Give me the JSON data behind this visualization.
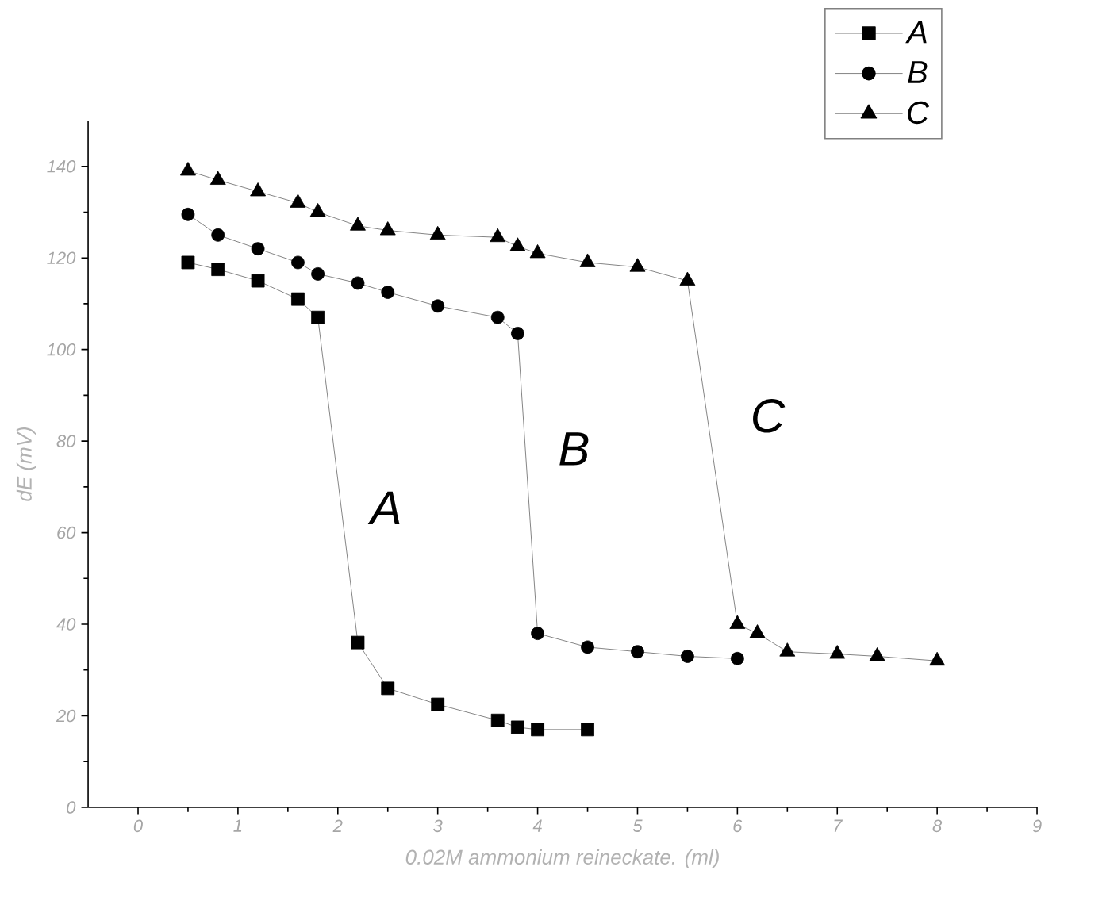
{
  "chart_data": {
    "type": "line",
    "xlabel": "0.02M ammonium reineckate. (ml)",
    "ylabel": "dE (mV)",
    "xlim": [
      -0.5,
      9
    ],
    "ylim": [
      0,
      150
    ],
    "xticks": [
      0,
      1,
      2,
      3,
      4,
      5,
      6,
      7,
      8,
      9
    ],
    "yticks": [
      0,
      20,
      40,
      60,
      80,
      100,
      120,
      140
    ],
    "legend": "top right",
    "grid": false,
    "series": [
      {
        "name": "A",
        "color": "#000000",
        "marker": "square",
        "x": [
          0.5,
          0.8,
          1.2,
          1.6,
          1.8,
          2.2,
          2.5,
          3,
          3.6,
          3.8,
          4,
          4.5
        ],
        "values": [
          119,
          117.5,
          115,
          111,
          107,
          36,
          26,
          22.5,
          19,
          17.5,
          17,
          17
        ]
      },
      {
        "name": "B",
        "color": "#000000",
        "marker": "circle",
        "x": [
          0.5,
          0.8,
          1.2,
          1.6,
          1.8,
          2.2,
          2.5,
          3,
          3.6,
          3.8,
          4,
          4.5,
          5,
          5.5,
          6
        ],
        "values": [
          129.5,
          125,
          122,
          119,
          116.5,
          114.5,
          112.5,
          109.5,
          107,
          103.5,
          38,
          35,
          34,
          33,
          32.5
        ]
      },
      {
        "name": "C",
        "color": "#000000",
        "marker": "triangle",
        "x": [
          0.5,
          0.8,
          1.2,
          1.6,
          1.8,
          2.2,
          2.5,
          3,
          3.6,
          3.8,
          4,
          4.5,
          5,
          5.5,
          6,
          6.2,
          6.5,
          7,
          7.4,
          8
        ],
        "values": [
          139,
          137,
          134.5,
          132,
          130,
          127,
          126,
          125,
          124.5,
          122.5,
          121,
          119,
          118,
          115,
          40,
          38,
          34,
          33.5,
          33,
          32
        ]
      }
    ],
    "annotations": [
      "A",
      "B",
      "C"
    ]
  }
}
